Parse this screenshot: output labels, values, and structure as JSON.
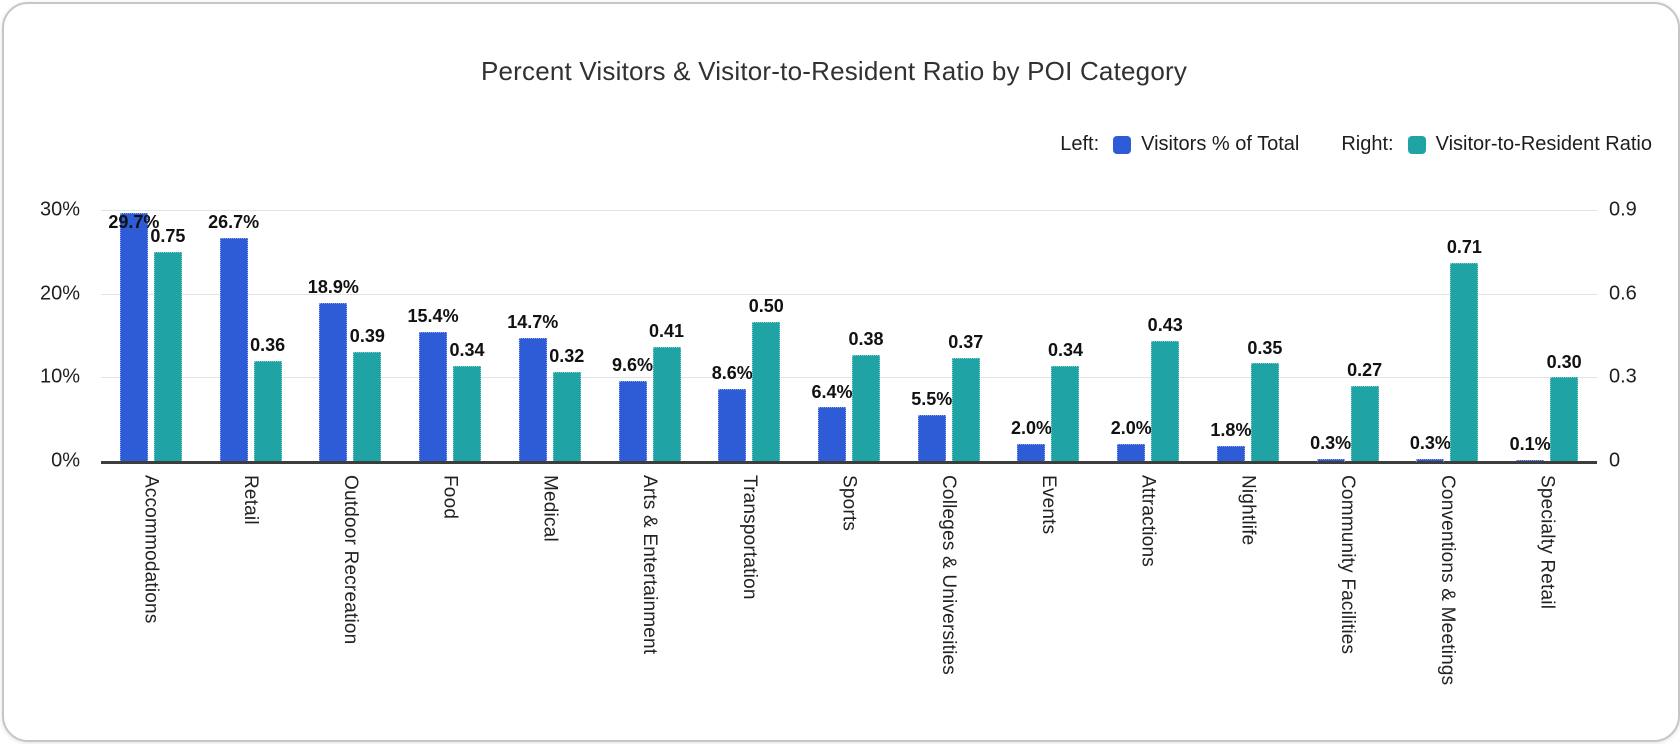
{
  "legend": {
    "left_prefix": "Left:",
    "left_series": "Visitors % of Total",
    "right_prefix": "Right:",
    "right_series": "Visitor-to-Resident Ratio"
  },
  "colors": {
    "visitors_blue": "#2E5CD6",
    "ratio_teal": "#1FA3A4",
    "gridline": "#e2e2e2",
    "axis_line": "#3d3d3d"
  },
  "chart_data": {
    "type": "bar",
    "title": "Percent Visitors & Visitor-to-Resident Ratio by POI Category",
    "grid": true,
    "legend_position": "top-right",
    "categories": [
      "Accommodations",
      "Retail",
      "Outdoor Recreation",
      "Food",
      "Medical",
      "Arts & Entertainment",
      "Transportation",
      "Sports",
      "Colleges & Universities",
      "Events",
      "Attractions",
      "Nightlife",
      "Community Facilities",
      "Conventions & Meetings",
      "Specialty Retail"
    ],
    "series": [
      {
        "name": "Visitors % of Total",
        "axis": "left",
        "color": "#2E5CD6",
        "values": [
          29.7,
          26.7,
          18.9,
          15.4,
          14.7,
          9.6,
          8.6,
          6.4,
          5.5,
          2.0,
          2.0,
          1.8,
          0.3,
          0.3,
          0.1
        ],
        "labels": [
          "29.7%",
          "26.7%",
          "18.9%",
          "15.4%",
          "14.7%",
          "9.6%",
          "8.6%",
          "6.4%",
          "5.5%",
          "2.0%",
          "2.0%",
          "1.8%",
          "0.3%",
          "0.3%",
          "0.1%"
        ]
      },
      {
        "name": "Visitor-to-Resident Ratio",
        "axis": "right",
        "color": "#1FA3A4",
        "values": [
          0.75,
          0.36,
          0.39,
          0.34,
          0.32,
          0.41,
          0.5,
          0.38,
          0.37,
          0.34,
          0.43,
          0.35,
          0.27,
          0.71,
          0.3
        ],
        "labels": [
          "0.75",
          "0.36",
          "0.39",
          "0.34",
          "0.32",
          "0.41",
          "0.50",
          "0.38",
          "0.37",
          "0.34",
          "0.43",
          "0.35",
          "0.27",
          "0.71",
          "0.30"
        ]
      }
    ],
    "left_axis": {
      "ticks": [
        "0%",
        "10%",
        "20%",
        "30%"
      ],
      "min": 0,
      "max": 30
    },
    "right_axis": {
      "ticks": [
        "0",
        "0.3",
        "0.6",
        "0.9"
      ],
      "min": 0,
      "max": 0.9
    }
  }
}
